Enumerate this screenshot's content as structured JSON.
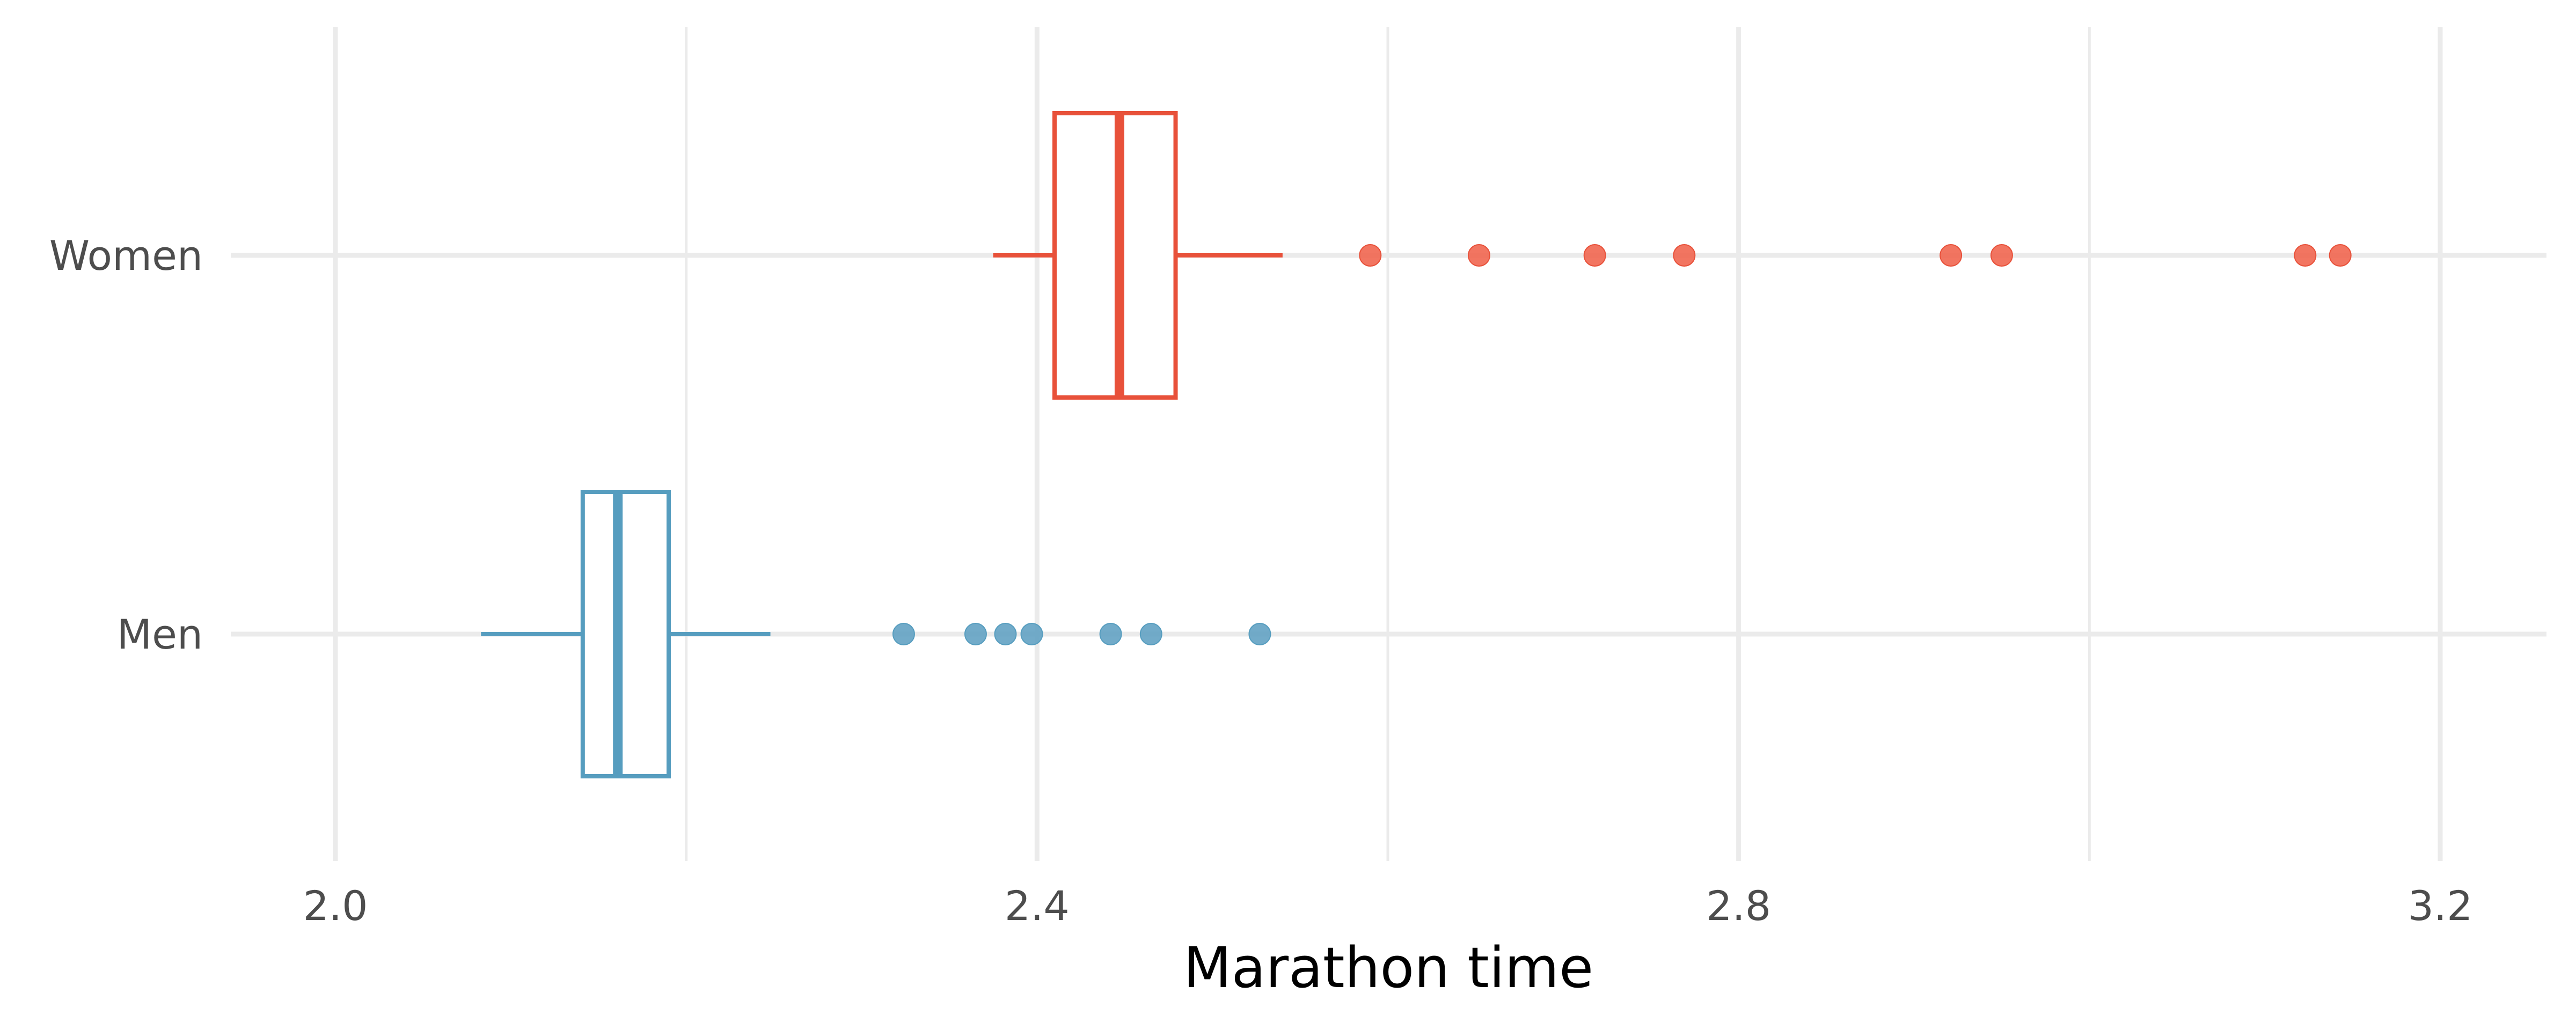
{
  "chart_data": {
    "type": "boxplot",
    "orientation": "horizontal",
    "title": "",
    "xlabel": "Marathon time",
    "ylabel": "",
    "xlim": [
      1.94,
      3.245
    ],
    "x_ticks": [
      "2.0",
      "2.4",
      "2.8",
      "3.2"
    ],
    "x_tick_values": [
      2.0,
      2.4,
      2.8,
      3.2
    ],
    "x_minor_gridlines": [
      2.2,
      2.6,
      3.0
    ],
    "categories": [
      "Women",
      "Men"
    ],
    "grid": true,
    "legend": "none",
    "series": [
      {
        "name": "Women",
        "color": "#E8513A",
        "point_color": "#F0624B",
        "whisker_low": 2.375,
        "q1": 2.41,
        "median": 2.447,
        "q3": 2.479,
        "whisker_high": 2.54,
        "outliers": [
          2.59,
          2.652,
          2.718,
          2.769,
          2.921,
          2.95,
          3.123,
          3.143
        ]
      },
      {
        "name": "Men",
        "color": "#569DBF",
        "point_color": "#5F9FC2",
        "whisker_low": 2.083,
        "q1": 2.141,
        "median": 2.161,
        "q3": 2.19,
        "whisker_high": 2.248,
        "outliers": [
          2.324,
          2.365,
          2.382,
          2.397,
          2.442,
          2.465,
          2.527
        ]
      }
    ]
  }
}
